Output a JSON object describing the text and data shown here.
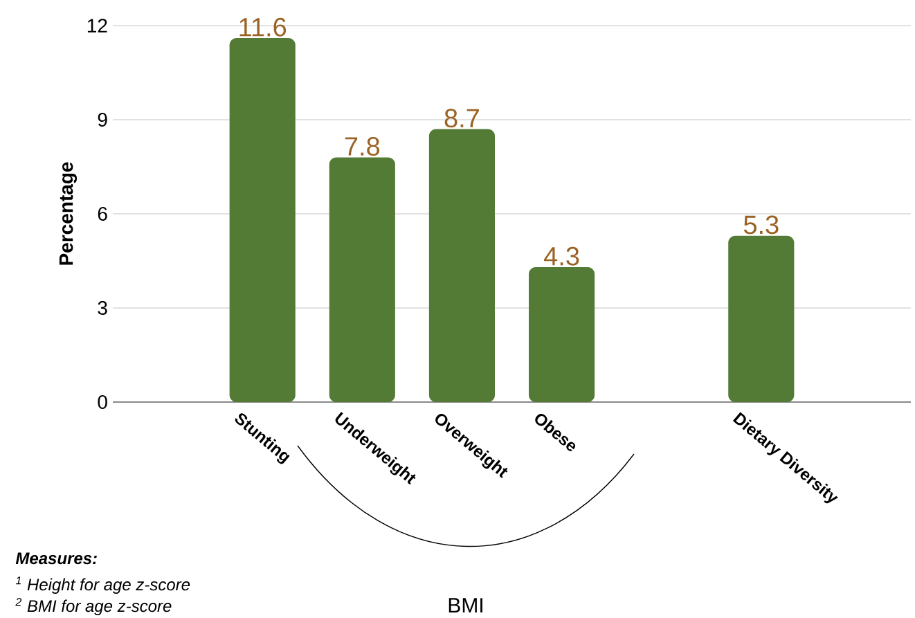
{
  "chart_data": {
    "type": "bar",
    "categories": [
      null,
      "Stunting",
      "Underweight",
      "Overweight",
      "Obese",
      null,
      "Dietary Diversity",
      null
    ],
    "values": [
      null,
      11.6,
      7.8,
      8.7,
      4.3,
      null,
      5.3,
      null
    ],
    "color": "#537b35",
    "ylabel": "Percentage",
    "ylim": [
      0,
      12
    ],
    "yticks": [
      0,
      3,
      6,
      9,
      12
    ],
    "grid": "y",
    "data_labels": true,
    "annotations": [
      "BMI",
      "Measures:",
      "$^{1}$ Height for age z-score",
      "$^{2}$ BMI for age z-score"
    ]
  }
}
